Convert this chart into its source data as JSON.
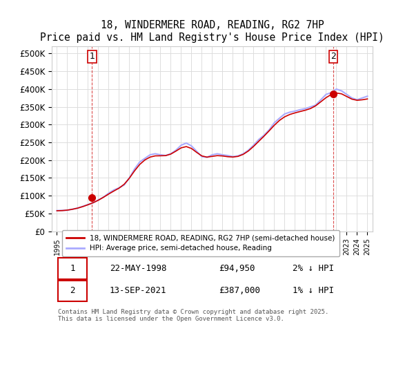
{
  "title": "18, WINDERMERE ROAD, READING, RG2 7HP",
  "subtitle": "Price paid vs. HM Land Registry's House Price Index (HPI)",
  "ylabel_ticks": [
    "£0",
    "£50K",
    "£100K",
    "£150K",
    "£200K",
    "£250K",
    "£300K",
    "£350K",
    "£400K",
    "£450K",
    "£500K"
  ],
  "ytick_values": [
    0,
    50000,
    100000,
    150000,
    200000,
    250000,
    300000,
    350000,
    400000,
    450000,
    500000
  ],
  "ylim": [
    0,
    520000
  ],
  "xlim_start": 1994.5,
  "xlim_end": 2025.5,
  "hpi_color": "#aaaaff",
  "price_color": "#cc0000",
  "point1_x": 1998.38,
  "point1_y": 94950,
  "point1_label": "1",
  "point2_x": 2021.7,
  "point2_y": 387000,
  "point2_label": "2",
  "legend_line1": "18, WINDERMERE ROAD, READING, RG2 7HP (semi-detached house)",
  "legend_line2": "HPI: Average price, semi-detached house, Reading",
  "table_row1": [
    "1",
    "22-MAY-1998",
    "£94,950",
    "2% ↓ HPI"
  ],
  "table_row2": [
    "2",
    "13-SEP-2021",
    "£387,000",
    "1% ↓ HPI"
  ],
  "footnote": "Contains HM Land Registry data © Crown copyright and database right 2025.\nThis data is licensed under the Open Government Licence v3.0.",
  "background_color": "#ffffff",
  "grid_color": "#dddddd"
}
